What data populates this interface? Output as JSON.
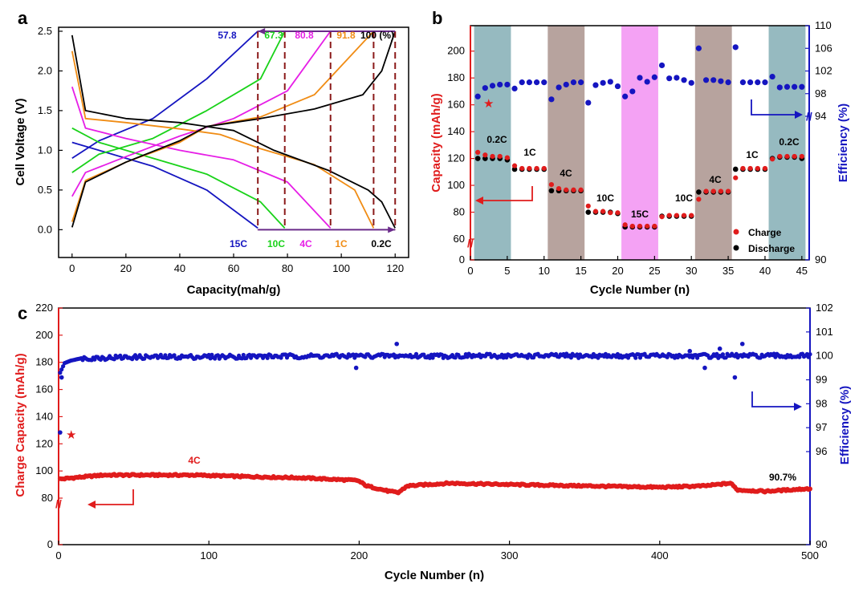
{
  "colors": {
    "red": "#e01c1c",
    "blue": "#1515c0",
    "green": "#19d219",
    "magenta": "#e61ee6",
    "orange": "#f08c14",
    "black": "#000000",
    "teal": "#6e9fa7",
    "brown": "#9b8078",
    "pink": "#f07ef0",
    "dashed": "#8b1a1a"
  },
  "chart_data": [
    {
      "panel": "a",
      "type": "line",
      "xlabel": "Capacity(mah/g)",
      "ylabel": "Cell Voltage (V)",
      "xlim": [
        -5,
        125
      ],
      "ylim": [
        -0.35,
        2.55
      ],
      "xticks": [
        "0",
        "20",
        "40",
        "60",
        "80",
        "100",
        "120"
      ],
      "yticks": [
        "0.0",
        "0.5",
        "1.0",
        "1.5",
        "2.0",
        "2.5"
      ],
      "series": [
        {
          "name": "15C",
          "color": "#1515c0",
          "charge": [
            [
              0,
              0.9
            ],
            [
              10,
              1.12
            ],
            [
              30,
              1.4
            ],
            [
              50,
              1.9
            ],
            [
              69,
              2.5
            ]
          ],
          "discharge": [
            [
              0,
              1.1
            ],
            [
              10,
              1.0
            ],
            [
              30,
              0.8
            ],
            [
              50,
              0.5
            ],
            [
              69,
              0.02
            ]
          ]
        },
        {
          "name": "10C",
          "color": "#19d219",
          "charge": [
            [
              0,
              0.72
            ],
            [
              10,
              0.95
            ],
            [
              30,
              1.15
            ],
            [
              50,
              1.5
            ],
            [
              70,
              1.9
            ],
            [
              79,
              2.5
            ]
          ],
          "discharge": [
            [
              0,
              1.28
            ],
            [
              10,
              1.1
            ],
            [
              30,
              0.9
            ],
            [
              50,
              0.7
            ],
            [
              70,
              0.35
            ],
            [
              79,
              0.02
            ]
          ]
        },
        {
          "name": "4C",
          "color": "#e61ee6",
          "charge": [
            [
              0,
              0.42
            ],
            [
              5,
              0.72
            ],
            [
              20,
              0.92
            ],
            [
              40,
              1.18
            ],
            [
              60,
              1.4
            ],
            [
              80,
              1.75
            ],
            [
              96,
              2.5
            ]
          ],
          "discharge": [
            [
              0,
              1.8
            ],
            [
              5,
              1.28
            ],
            [
              20,
              1.15
            ],
            [
              40,
              1.0
            ],
            [
              60,
              0.88
            ],
            [
              80,
              0.6
            ],
            [
              96,
              0.02
            ]
          ]
        },
        {
          "name": "1C",
          "color": "#f08c14",
          "charge": [
            [
              0,
              0.1
            ],
            [
              5,
              0.62
            ],
            [
              20,
              0.85
            ],
            [
              40,
              1.1
            ],
            [
              50,
              1.3
            ],
            [
              70,
              1.42
            ],
            [
              90,
              1.7
            ],
            [
              112,
              2.5
            ]
          ],
          "discharge": [
            [
              0,
              2.25
            ],
            [
              5,
              1.4
            ],
            [
              20,
              1.35
            ],
            [
              40,
              1.27
            ],
            [
              55,
              1.2
            ],
            [
              70,
              1.02
            ],
            [
              90,
              0.82
            ],
            [
              105,
              0.5
            ],
            [
              112,
              0.02
            ]
          ]
        },
        {
          "name": "0.2C",
          "color": "#000000",
          "charge": [
            [
              0,
              0.03
            ],
            [
              5,
              0.6
            ],
            [
              20,
              0.85
            ],
            [
              40,
              1.12
            ],
            [
              50,
              1.3
            ],
            [
              70,
              1.4
            ],
            [
              90,
              1.52
            ],
            [
              108,
              1.7
            ],
            [
              115,
              2.0
            ],
            [
              120,
              2.5
            ]
          ],
          "discharge": [
            [
              0,
              2.45
            ],
            [
              5,
              1.5
            ],
            [
              20,
              1.4
            ],
            [
              40,
              1.35
            ],
            [
              60,
              1.25
            ],
            [
              75,
              1.0
            ],
            [
              95,
              0.75
            ],
            [
              110,
              0.5
            ],
            [
              115,
              0.35
            ],
            [
              120,
              0.02
            ]
          ]
        }
      ],
      "percent_labels": [
        "57.8",
        "67.3",
        "80.8",
        "91.8",
        "100 (%)"
      ],
      "rate_labels": [
        "15C",
        "10C",
        "4C",
        "1C",
        "0.2C"
      ],
      "endpoints": [
        69,
        79,
        96,
        112,
        120
      ]
    },
    {
      "panel": "b",
      "type": "scatter",
      "xlabel": "Cycle Number (n)",
      "ylabel": "Capacity (mAh/g)",
      "ylabel2": "Efficiency (%)",
      "xlim": [
        0,
        46
      ],
      "xticks": [
        "0",
        "5",
        "10",
        "15",
        "20",
        "25",
        "30",
        "35",
        "40",
        "45"
      ],
      "yticks_left": [
        "0",
        "60",
        "80",
        "100",
        "120",
        "140",
        "160",
        "180",
        "200"
      ],
      "yticks_right": [
        "90",
        "94",
        "98",
        "102",
        "106",
        "110"
      ],
      "rate_labels": [
        "0.2C",
        "1C",
        "4C",
        "10C",
        "15C",
        "10C",
        "4C",
        "1C",
        "0.2C"
      ],
      "legend": [
        "Charge",
        "Discharge"
      ],
      "charge": [
        124,
        122,
        121,
        121,
        120,
        114,
        112,
        112,
        112,
        112,
        100,
        97,
        96,
        96,
        96,
        84,
        80,
        80,
        79,
        79,
        70,
        69,
        69,
        69,
        69,
        76,
        77,
        77,
        77,
        77,
        89,
        95,
        95,
        95,
        95,
        105,
        112,
        112,
        112,
        112,
        119,
        121,
        121,
        121,
        121
      ],
      "discharge": [
        120,
        120,
        120,
        120,
        119,
        112,
        112,
        112,
        112,
        112,
        96,
        96,
        96,
        96,
        96,
        80,
        80,
        80,
        80,
        79,
        69,
        69,
        69,
        69,
        69,
        77,
        77,
        77,
        77,
        77,
        95,
        95,
        95,
        95,
        95,
        112,
        112,
        112,
        112,
        112,
        120,
        121,
        121,
        121,
        120
      ],
      "efficiency": [
        97.5,
        99.0,
        99.4,
        99.6,
        99.6,
        98.9,
        100.0,
        100.0,
        100.0,
        100.0,
        97.0,
        99.1,
        99.6,
        100.0,
        100.0,
        96.4,
        99.5,
        99.9,
        100.1,
        99.3,
        97.5,
        98.4,
        100.8,
        100.1,
        100.9,
        103.0,
        100.7,
        100.8,
        100.4,
        99.9,
        106.0,
        100.4,
        100.4,
        100.2,
        100.0,
        106.2,
        100.0,
        100.0,
        100.0,
        100.0,
        101.0,
        99.1,
        99.2,
        99.2,
        99.2
      ]
    },
    {
      "panel": "c",
      "type": "scatter",
      "xlabel": "Cycle Number (n)",
      "ylabel": "Charge Capacity (mAh/g)",
      "ylabel2": "Efficiency (%)",
      "xlim": [
        0,
        500
      ],
      "xticks": [
        "0",
        "100",
        "200",
        "300",
        "400",
        "500"
      ],
      "yticks_left": [
        "0",
        "80",
        "100",
        "120",
        "140",
        "160",
        "180",
        "200",
        "220"
      ],
      "yticks_right": [
        "90",
        "96",
        "97",
        "98",
        "99",
        "100",
        "101",
        "102"
      ],
      "rate_label": "4C",
      "retention_label": "90.7%",
      "capacity_trend": [
        [
          1,
          94
        ],
        [
          10,
          95
        ],
        [
          30,
          97
        ],
        [
          60,
          97
        ],
        [
          90,
          97
        ],
        [
          120,
          96
        ],
        [
          160,
          95
        ],
        [
          199,
          93
        ],
        [
          205,
          89
        ],
        [
          220,
          85
        ],
        [
          226,
          84
        ],
        [
          232,
          89
        ],
        [
          260,
          91
        ],
        [
          300,
          90
        ],
        [
          350,
          89
        ],
        [
          400,
          88
        ],
        [
          430,
          89
        ],
        [
          447,
          91
        ],
        [
          452,
          86
        ],
        [
          470,
          85
        ],
        [
          500,
          87
        ]
      ],
      "efficiency_trend": [
        [
          1,
          99.3
        ],
        [
          4,
          99.7
        ],
        [
          8,
          99.8
        ],
        [
          15,
          99.9
        ],
        [
          50,
          99.95
        ],
        [
          200,
          100.0
        ],
        [
          300,
          100.0
        ],
        [
          400,
          100.0
        ],
        [
          500,
          100.0
        ]
      ],
      "efficiency_outliers": [
        [
          1,
          96.8
        ],
        [
          2,
          99.1
        ],
        [
          198,
          99.5
        ],
        [
          225,
          100.5
        ],
        [
          430,
          99.5
        ],
        [
          440,
          100.3
        ],
        [
          450,
          99.1
        ],
        [
          455,
          100.5
        ],
        [
          420,
          100.2
        ]
      ]
    }
  ]
}
